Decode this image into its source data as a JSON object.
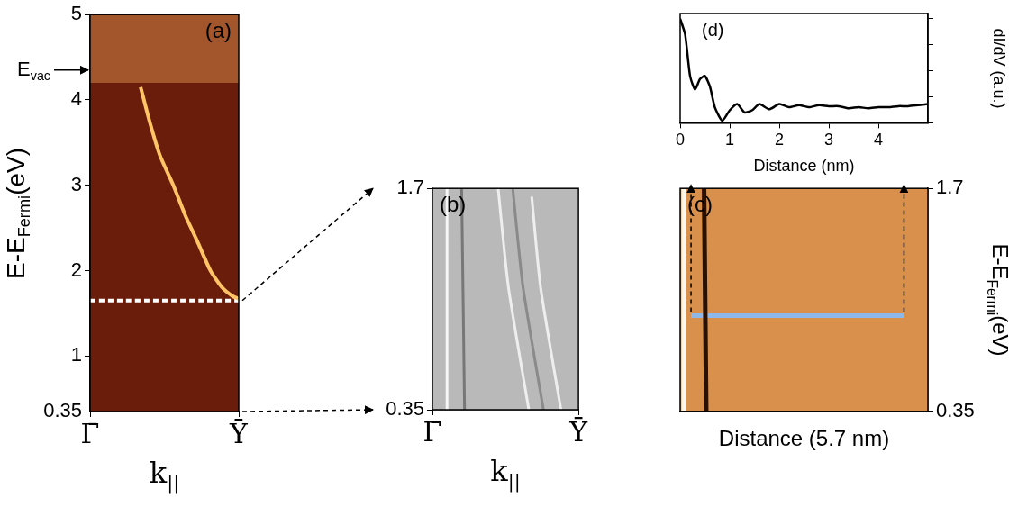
{
  "chart_data": [
    {
      "type": "line",
      "title": "(a)",
      "x_label": {
        "text": "k",
        "sub": "||"
      },
      "y_label": {
        "text": "E-E",
        "sub": "Fermi",
        "tail": "(eV)"
      },
      "xlim": [
        0,
        1
      ],
      "xticks": [
        {
          "value": 0,
          "label": "Γ̄"
        },
        {
          "value": 1,
          "label": "Ȳ"
        }
      ],
      "ylim": [
        0.35,
        5
      ],
      "yticks": [
        0.35,
        1,
        2,
        3,
        4,
        5
      ],
      "vacuum_region": {
        "ylim": [
          4.2,
          5
        ],
        "color": "#a3552c"
      },
      "annotations": [
        {
          "text": "E",
          "sub": "vac",
          "y": 4.35
        }
      ],
      "series": [
        {
          "color": "#ffc465",
          "x": [
            0.34,
            0.4,
            0.47,
            0.56,
            0.64,
            0.72,
            0.81,
            0.89,
            0.96,
            1.0
          ],
          "values": [
            4.15,
            3.75,
            3.35,
            3.0,
            2.65,
            2.35,
            2.0,
            1.8,
            1.7,
            1.67
          ]
        },
        {
          "color": "#ffffff",
          "line_style": "dashed",
          "x": [
            0,
            1
          ],
          "values": [
            1.65,
            1.65
          ]
        }
      ]
    },
    {
      "type": "line",
      "title": "(b)",
      "x_label": {
        "text": "k",
        "sub": "||"
      },
      "xlim": [
        0,
        1
      ],
      "xticks": [
        {
          "value": 0,
          "label": "Γ̄"
        },
        {
          "value": 1,
          "label": "Ȳ"
        }
      ],
      "ylim": [
        0.35,
        1.7
      ],
      "yticks": [
        0.35,
        1.7
      ],
      "series": [
        {
          "color": "#f6f6f6",
          "x": [
            0.1,
            0.1
          ],
          "values": [
            1.7,
            0.35
          ]
        },
        {
          "color": "#777777",
          "x": [
            0.2,
            0.22
          ],
          "values": [
            1.7,
            0.35
          ]
        },
        {
          "color": "#eeeeee",
          "x": [
            0.45,
            0.52,
            0.66
          ],
          "values": [
            1.7,
            1.1,
            0.35
          ]
        },
        {
          "color": "#8a8a8a",
          "x": [
            0.55,
            0.62,
            0.76
          ],
          "values": [
            1.7,
            1.1,
            0.35
          ]
        },
        {
          "color": "#eeeeee",
          "x": [
            0.68,
            0.74,
            0.88
          ],
          "values": [
            1.65,
            1.1,
            0.35
          ]
        }
      ]
    },
    {
      "type": "line",
      "title": "(c)",
      "x_label": {
        "text": "Distance (5.7 nm)"
      },
      "y_label": {
        "text": "E-E",
        "sub": "Fermi",
        "tail": "(eV)"
      },
      "xlim": [
        0,
        5.7
      ],
      "ylim": [
        0.35,
        1.7
      ],
      "yticks": [
        0.35,
        1.7
      ],
      "tick_labels": "y",
      "series": [
        {
          "color": "#fff6ea",
          "x": [
            0.08,
            0.08
          ],
          "values": [
            0.35,
            1.7
          ]
        },
        {
          "color": "#2a1000",
          "x": [
            0.6,
            0.55
          ],
          "values": [
            0.35,
            1.7
          ]
        },
        {
          "color": "#8fb8ea",
          "x": [
            0.25,
            5.15
          ],
          "values": [
            0.93,
            0.93
          ]
        }
      ]
    },
    {
      "type": "line",
      "title": "(d)",
      "x_label": {
        "text": "Distance (nm)"
      },
      "y_label": {
        "text": "dI/dV (a.u.)"
      },
      "xlim": [
        0,
        5
      ],
      "xticks": [
        0,
        1,
        2,
        3,
        4
      ],
      "ylim": [
        0,
        1.05
      ],
      "yticks": [
        0,
        0.25,
        0.5,
        0.75,
        1
      ],
      "tick_labels": "x",
      "series": [
        {
          "color": "#000000",
          "x": [
            0,
            0.1,
            0.2,
            0.3,
            0.4,
            0.5,
            0.6,
            0.7,
            0.85,
            1.0,
            1.15,
            1.3,
            1.45,
            1.6,
            1.8,
            2.0,
            2.2,
            2.4,
            2.6,
            2.8,
            3.0,
            3.2,
            3.4,
            3.6,
            3.8,
            4.0,
            4.2,
            4.4,
            4.6,
            4.8,
            5.0
          ],
          "values": [
            1.0,
            0.85,
            0.45,
            0.32,
            0.42,
            0.45,
            0.35,
            0.15,
            0.02,
            0.12,
            0.18,
            0.1,
            0.12,
            0.18,
            0.13,
            0.18,
            0.15,
            0.17,
            0.15,
            0.17,
            0.16,
            0.16,
            0.14,
            0.15,
            0.14,
            0.15,
            0.15,
            0.16,
            0.16,
            0.17,
            0.18
          ]
        }
      ]
    }
  ]
}
